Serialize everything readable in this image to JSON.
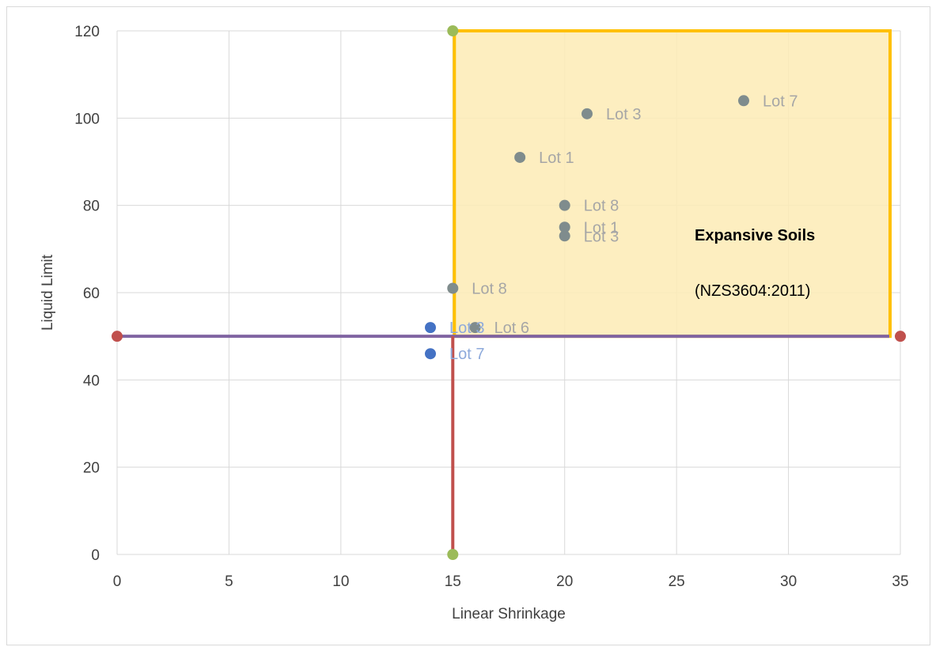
{
  "chart_data": {
    "type": "scatter",
    "title": "",
    "xlabel": "Linear Shrinkage",
    "ylabel": "Liquid Limit",
    "xlim": [
      0,
      35
    ],
    "ylim": [
      0,
      120
    ],
    "xticks": [
      0,
      5,
      10,
      15,
      20,
      25,
      30,
      35
    ],
    "yticks": [
      0,
      20,
      40,
      60,
      80,
      100,
      120
    ],
    "grid": true,
    "legend": "none",
    "colors": {
      "expansive_point": "#7f8c8d",
      "non_expansive_point": "#4472c4",
      "zone_fill": "#fdebb5",
      "zone_border": "#ffc000",
      "horizontal_line": "#8064a2",
      "vertical_line": "#c0504d",
      "h_end": "#c0504d",
      "v_end": "#9bbb59",
      "label_expansive": "#a6a6a6",
      "label_non_expansive": "#8eaadb"
    },
    "zone": {
      "x_range": [
        15,
        35
      ],
      "y_range": [
        50,
        120
      ],
      "title": "Expansive Soils",
      "subtitle": "(NZS3604:2011)"
    },
    "threshold_lines": [
      {
        "x": [
          0,
          35
        ],
        "y": [
          50,
          50
        ]
      },
      {
        "x": [
          15,
          15
        ],
        "y": [
          0,
          120
        ]
      }
    ],
    "points": [
      {
        "x": 21,
        "y": 101,
        "label": "Lot 3",
        "group": "expansive"
      },
      {
        "x": 28,
        "y": 104,
        "label": "Lot 7",
        "group": "expansive"
      },
      {
        "x": 18,
        "y": 91,
        "label": "Lot 1",
        "group": "expansive"
      },
      {
        "x": 20,
        "y": 80,
        "label": "Lot 8",
        "group": "expansive"
      },
      {
        "x": 20,
        "y": 75,
        "label": "Lot 1",
        "group": "expansive"
      },
      {
        "x": 20,
        "y": 73,
        "label": "Lot 3",
        "group": "expansive"
      },
      {
        "x": 15,
        "y": 61,
        "label": "Lot 8",
        "group": "expansive"
      },
      {
        "x": 16,
        "y": 52,
        "label": "Lot 6",
        "group": "expansive"
      },
      {
        "x": 14,
        "y": 52,
        "label": "Lot 3",
        "group": "non_expansive"
      },
      {
        "x": 14,
        "y": 46,
        "label": "Lot 7",
        "group": "non_expansive"
      }
    ]
  }
}
